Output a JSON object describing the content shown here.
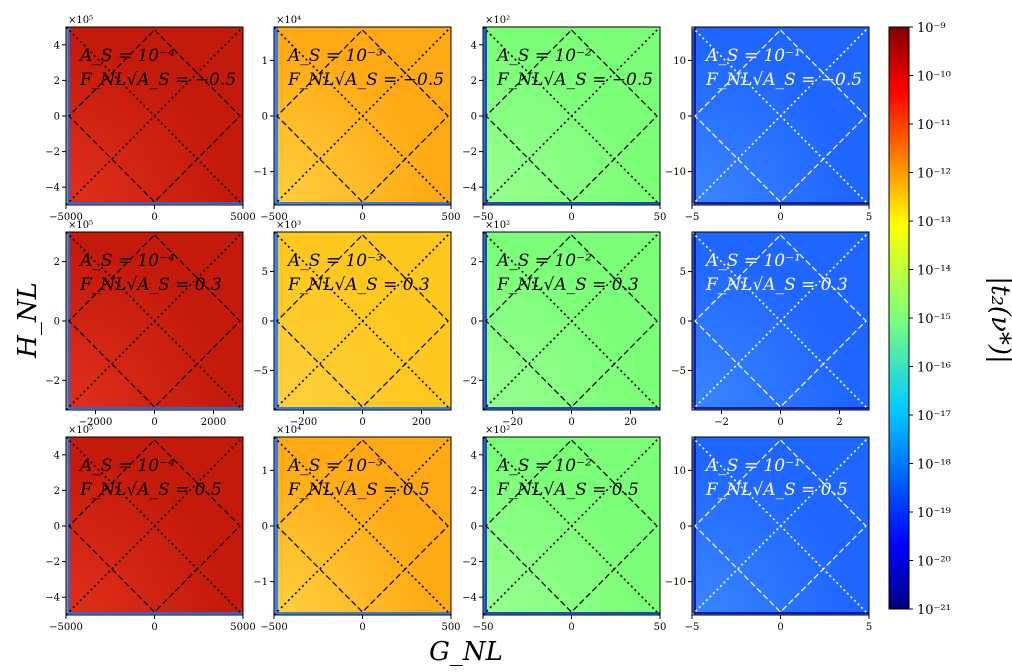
{
  "figure": {
    "xlabel": "G_NL",
    "ylabel": "H_NL",
    "colorbar_label": "|t₂(ν*)|"
  },
  "colorbar": {
    "type": "heatmap-colorbar",
    "scale": "log",
    "range": [
      1e-21,
      1e-09
    ],
    "colormap": "jet",
    "ticks": [
      "10⁻⁹",
      "10⁻¹⁰",
      "10⁻¹¹",
      "10⁻¹²",
      "10⁻¹³",
      "10⁻¹⁴",
      "10⁻¹⁵",
      "10⁻¹⁶",
      "10⁻¹⁷",
      "10⁻¹⁸",
      "10⁻¹⁹",
      "10⁻²⁰",
      "10⁻²¹"
    ]
  },
  "chart_data": [
    {
      "type": "heatmap",
      "row": 0,
      "col": 0,
      "annotation_As": "A_S = 10⁻⁴",
      "annotation_F": "F_NL√A_S = −0.5",
      "xlim": [
        -5000,
        5000
      ],
      "ylim": [
        -500000,
        500000
      ],
      "x_ticks": [
        "−5000",
        "0",
        "5000"
      ],
      "y_ticks": [
        "4",
        "2",
        "0",
        "−2",
        "−4"
      ],
      "y_multiplier": "×10⁵",
      "base_color": "#c41a0c",
      "x0": -5000,
      "y0": -500000
    },
    {
      "type": "heatmap",
      "row": 0,
      "col": 1,
      "annotation_As": "A_S = 10⁻³",
      "annotation_F": "F_NL√A_S = −0.5",
      "xlim": [
        -500,
        500
      ],
      "ylim": [
        -16000,
        16000
      ],
      "x_ticks": [
        "−500",
        "0",
        "500"
      ],
      "y_ticks": [
        "1",
        "0",
        "−1"
      ],
      "y_multiplier": "×10⁴",
      "base_color": "#ffaa14",
      "x0": -500,
      "y0": -16000
    },
    {
      "type": "heatmap",
      "row": 0,
      "col": 2,
      "annotation_As": "A_S = 10⁻²",
      "annotation_F": "F_NL√A_S = −0.5",
      "xlim": [
        -50,
        50
      ],
      "ylim": [
        -500,
        500
      ],
      "x_ticks": [
        "−50",
        "0",
        "50"
      ],
      "y_ticks": [
        "4",
        "2",
        "0",
        "−2",
        "−4"
      ],
      "y_multiplier": "×10²",
      "base_color": "#7cff78",
      "x0": -50,
      "y0": -500
    },
    {
      "type": "heatmap",
      "row": 0,
      "col": 3,
      "annotation_As": "A_S = 10⁻¹",
      "annotation_F": "F_NL√A_S = −0.5",
      "xlim": [
        -5,
        5
      ],
      "ylim": [
        -16,
        16
      ],
      "x_ticks": [
        "−5",
        "0",
        "5"
      ],
      "y_ticks": [
        "10",
        "0",
        "−10"
      ],
      "y_multiplier": "",
      "base_color": "#1f66ff",
      "x0": -5,
      "y0": -16
    },
    {
      "type": "heatmap",
      "row": 1,
      "col": 0,
      "annotation_As": "A_S = 10⁻⁴",
      "annotation_F": "F_NL√A_S = 0.3",
      "xlim": [
        -3000,
        3000
      ],
      "ylim": [
        -300000,
        300000
      ],
      "x_ticks": [
        "−2000",
        "0",
        "2000"
      ],
      "y_ticks": [
        "2",
        "0",
        "−2"
      ],
      "y_multiplier": "×10⁵",
      "base_color": "#c41a0c",
      "x0": -3000,
      "y0": -300000
    },
    {
      "type": "heatmap",
      "row": 1,
      "col": 1,
      "annotation_As": "A_S = 10⁻³",
      "annotation_F": "F_NL√A_S = 0.3",
      "xlim": [
        -300,
        300
      ],
      "ylim": [
        -9000,
        9000
      ],
      "x_ticks": [
        "−200",
        "0",
        "200"
      ],
      "y_ticks": [
        "5",
        "0",
        "−5"
      ],
      "y_multiplier": "×10³",
      "base_color": "#ffc81e",
      "x0": -300,
      "y0": -9000
    },
    {
      "type": "heatmap",
      "row": 1,
      "col": 2,
      "annotation_As": "A_S = 10⁻²",
      "annotation_F": "F_NL√A_S = 0.3",
      "xlim": [
        -30,
        30
      ],
      "ylim": [
        -300,
        300
      ],
      "x_ticks": [
        "−20",
        "0",
        "20"
      ],
      "y_ticks": [
        "2",
        "0",
        "−2"
      ],
      "y_multiplier": "×10²",
      "base_color": "#7cff78",
      "x0": -30,
      "y0": -300
    },
    {
      "type": "heatmap",
      "row": 1,
      "col": 3,
      "annotation_As": "A_S = 10⁻¹",
      "annotation_F": "F_NL√A_S = 0.3",
      "xlim": [
        -3,
        3
      ],
      "ylim": [
        -9,
        9
      ],
      "x_ticks": [
        "−2",
        "0",
        "2"
      ],
      "y_ticks": [
        "5",
        "0",
        "−5"
      ],
      "y_multiplier": "",
      "base_color": "#1f66ff",
      "x0": -3,
      "y0": -9
    },
    {
      "type": "heatmap",
      "row": 2,
      "col": 0,
      "annotation_As": "A_S = 10⁻⁴",
      "annotation_F": "F_NL√A_S = 0.5",
      "xlim": [
        -5000,
        5000
      ],
      "ylim": [
        -500000,
        500000
      ],
      "x_ticks": [
        "−5000",
        "0",
        "5000"
      ],
      "y_ticks": [
        "4",
        "2",
        "0",
        "−2",
        "−4"
      ],
      "y_multiplier": "×10⁵",
      "base_color": "#c41a0c",
      "x0": -5000,
      "y0": -500000
    },
    {
      "type": "heatmap",
      "row": 2,
      "col": 1,
      "annotation_As": "A_S = 10⁻³",
      "annotation_F": "F_NL√A_S = 0.5",
      "xlim": [
        -500,
        500
      ],
      "ylim": [
        -16000,
        16000
      ],
      "x_ticks": [
        "−500",
        "0",
        "500"
      ],
      "y_ticks": [
        "1",
        "0",
        "−1"
      ],
      "y_multiplier": "×10⁴",
      "base_color": "#ffaa14",
      "x0": -500,
      "y0": -16000
    },
    {
      "type": "heatmap",
      "row": 2,
      "col": 2,
      "annotation_As": "A_S = 10⁻²",
      "annotation_F": "F_NL√A_S = 0.5",
      "xlim": [
        -50,
        50
      ],
      "ylim": [
        -500,
        500
      ],
      "x_ticks": [
        "−50",
        "0",
        "50"
      ],
      "y_ticks": [
        "4",
        "2",
        "0",
        "−2",
        "−4"
      ],
      "y_multiplier": "×10²",
      "base_color": "#7cff78",
      "x0": -50,
      "y0": -500
    },
    {
      "type": "heatmap",
      "row": 2,
      "col": 3,
      "annotation_As": "A_S = 10⁻¹",
      "annotation_F": "F_NL√A_S = 0.5",
      "xlim": [
        -5,
        5
      ],
      "ylim": [
        -16,
        16
      ],
      "x_ticks": [
        "−5",
        "0",
        "5"
      ],
      "y_ticks": [
        "10",
        "0",
        "−10"
      ],
      "y_multiplier": "",
      "base_color": "#1f66ff",
      "x0": -5,
      "y0": -16
    }
  ]
}
